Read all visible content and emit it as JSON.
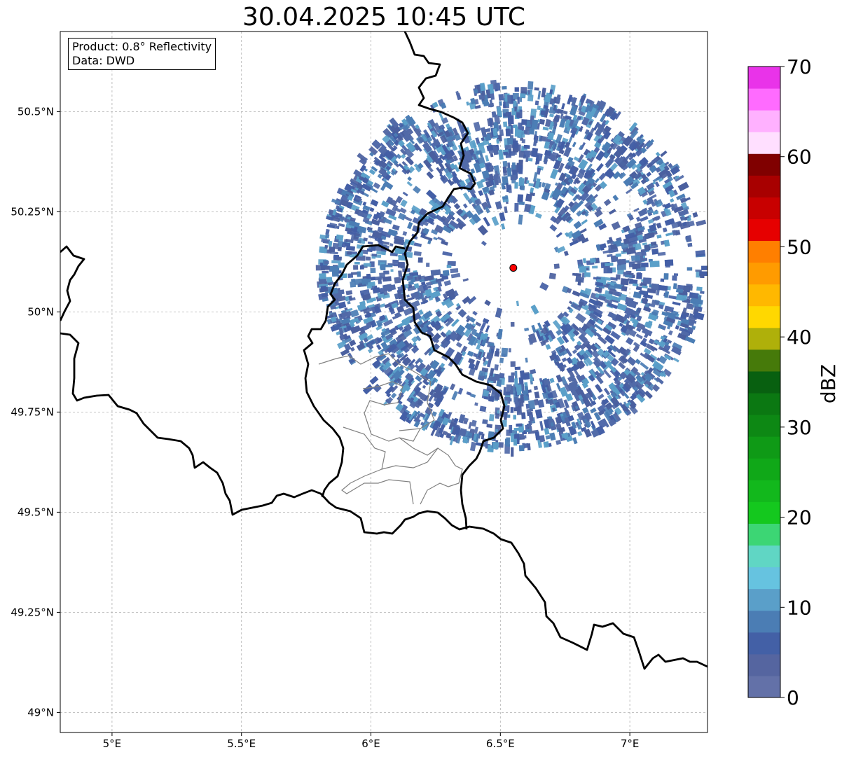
{
  "title": "30.04.2025 10:45 UTC",
  "info": {
    "product": "Product: 0.8° Reflectivity",
    "source": "Data: DWD"
  },
  "map": {
    "lon_range": [
      4.8,
      7.3
    ],
    "lat_range": [
      48.95,
      50.7
    ],
    "x_ticks": [
      {
        "value": 5.0,
        "label": "5°E"
      },
      {
        "value": 5.5,
        "label": "5.5°E"
      },
      {
        "value": 6.0,
        "label": "6°E"
      },
      {
        "value": 6.5,
        "label": "6.5°E"
      },
      {
        "value": 7.0,
        "label": "7°E"
      }
    ],
    "y_ticks": [
      {
        "value": 49.0,
        "label": "49°N"
      },
      {
        "value": 49.25,
        "label": "49.25°N"
      },
      {
        "value": 49.5,
        "label": "49.5°N"
      },
      {
        "value": 49.75,
        "label": "49.75°N"
      },
      {
        "value": 50.0,
        "label": "50°N"
      },
      {
        "value": 50.25,
        "label": "50.25°N"
      },
      {
        "value": 50.5,
        "label": "50.5°N"
      }
    ],
    "grid": true,
    "radar_site": {
      "lon": 6.55,
      "lat": 50.11,
      "color": "#ff0000"
    },
    "echo_colors": [
      "#4a5f9e",
      "#435ea5",
      "#516aa8",
      "#4b7db4",
      "#5a9fc9"
    ]
  },
  "colorbar": {
    "label": "dBZ",
    "min": 0,
    "max": 70,
    "tick_values": [
      0,
      10,
      20,
      30,
      40,
      50,
      60,
      70
    ],
    "tick_labels": [
      "0",
      "10",
      "20",
      "30",
      "40",
      "50",
      "60",
      "70"
    ],
    "colors": [
      "#6371a8",
      "#5565a0",
      "#4360a6",
      "#4b7db4",
      "#5a9fc9",
      "#66c3e0",
      "#60d6c4",
      "#3cd674",
      "#14c81e",
      "#12b81c",
      "#10a818",
      "#0f9a16",
      "#0d8814",
      "#0b7812",
      "#086010",
      "#467a0a",
      "#afb00a",
      "#ffd800",
      "#ffb800",
      "#ff9b00",
      "#ff7f00",
      "#e60000",
      "#c80000",
      "#a80000",
      "#800000",
      "#ffdfff",
      "#ffb1ff",
      "#ff6bff",
      "#e933e9"
    ]
  }
}
